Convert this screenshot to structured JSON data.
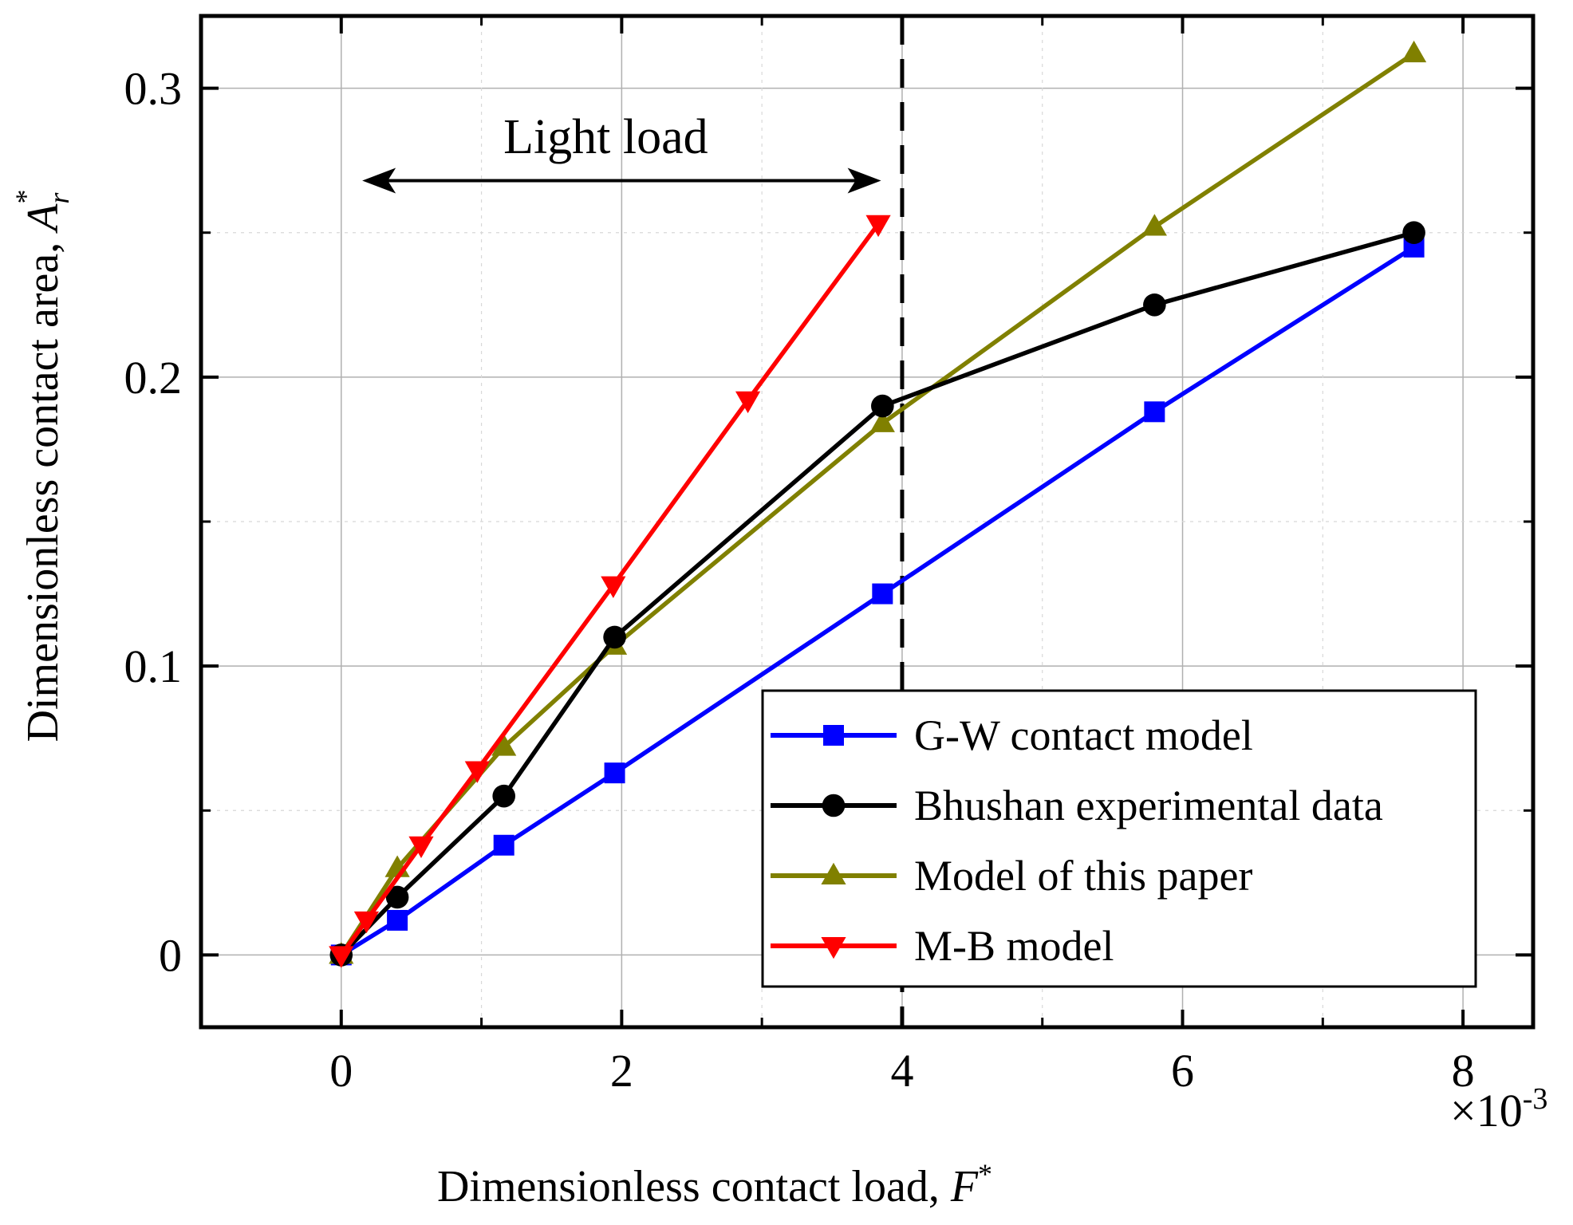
{
  "chart_data": {
    "type": "line",
    "xlabel": "Dimensionless contact load, ",
    "xlabel_symbol": "F",
    "xlabel_sup": "*",
    "ylabel": "Dimensionless contact area, ",
    "ylabel_symbol": "A",
    "ylabel_sub": "r",
    "ylabel_sup": "*",
    "x_scale_label": "×10",
    "x_scale_exp": "-3",
    "xlim": [
      -1,
      8.5
    ],
    "ylim": [
      -0.025,
      0.325
    ],
    "xticks": [
      0,
      2,
      4,
      6,
      8
    ],
    "xtick_labels": [
      "0",
      "2",
      "4",
      "6",
      "8"
    ],
    "yticks": [
      0,
      0.1,
      0.2,
      0.3
    ],
    "ytick_labels": [
      "0",
      "0.1",
      "0.2",
      "0.3"
    ],
    "x_minor_ticks": [
      1,
      3,
      5,
      7
    ],
    "y_minor_ticks": [
      0.05,
      0.15,
      0.25
    ],
    "grid": true,
    "legend_position": "bottom-right",
    "annotation": {
      "text": "Light load",
      "arrow_from_x": 0.15,
      "arrow_to_x": 3.85,
      "arrow_y": 0.268,
      "text_x": 2.0,
      "text_y": 0.283
    },
    "threshold_line_x": 4.0,
    "series": [
      {
        "name": "G-W contact model",
        "color": "#0000ff",
        "marker": "square",
        "x": [
          0,
          0.4,
          1.16,
          1.95,
          3.86,
          5.8,
          7.65
        ],
        "y": [
          0,
          0.012,
          0.038,
          0.063,
          0.125,
          0.188,
          0.245
        ]
      },
      {
        "name": "Bhushan experimental data",
        "color": "#000000",
        "marker": "circle",
        "x": [
          0,
          0.4,
          1.16,
          1.95,
          3.86,
          5.8,
          7.65
        ],
        "y": [
          0,
          0.02,
          0.055,
          0.11,
          0.19,
          0.225,
          0.25
        ]
      },
      {
        "name": "Model of this paper",
        "color": "#808000",
        "marker": "triangle-up",
        "x": [
          0,
          0.4,
          1.16,
          1.95,
          3.86,
          5.8,
          7.65
        ],
        "y": [
          0,
          0.03,
          0.072,
          0.107,
          0.184,
          0.252,
          0.312
        ]
      },
      {
        "name": "M-B model",
        "color": "#ff0000",
        "marker": "triangle-down",
        "x": [
          0,
          0.18,
          0.57,
          0.97,
          1.94,
          2.9,
          3.83
        ],
        "y": [
          0,
          0.012,
          0.038,
          0.064,
          0.128,
          0.192,
          0.253
        ]
      }
    ]
  }
}
